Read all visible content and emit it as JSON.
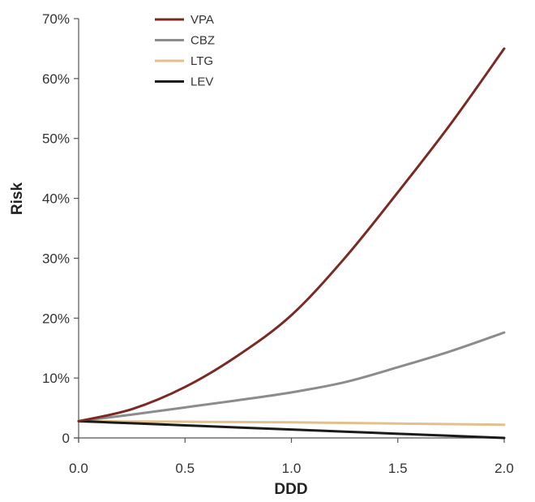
{
  "chart_data": {
    "type": "line",
    "xlabel": "DDD",
    "ylabel": "Risk",
    "xlim": [
      0,
      2
    ],
    "ylim": [
      0,
      0.7
    ],
    "x_ticks": [
      {
        "value": 0.0,
        "label": "0.0"
      },
      {
        "value": 0.5,
        "label": "0.5"
      },
      {
        "value": 1.0,
        "label": "1.0"
      },
      {
        "value": 1.5,
        "label": "1.5"
      },
      {
        "value": 2.0,
        "label": "2.0"
      }
    ],
    "y_ticks": [
      {
        "value": 0.0,
        "label": "0"
      },
      {
        "value": 0.1,
        "label": "10%"
      },
      {
        "value": 0.2,
        "label": "20%"
      },
      {
        "value": 0.3,
        "label": "30%"
      },
      {
        "value": 0.4,
        "label": "40%"
      },
      {
        "value": 0.5,
        "label": "50%"
      },
      {
        "value": 0.6,
        "label": "60%"
      },
      {
        "value": 0.7,
        "label": "70%"
      }
    ],
    "grid": false,
    "legend_position": "top-left",
    "x": [
      0.0,
      0.25,
      0.5,
      0.75,
      1.0,
      1.25,
      1.5,
      1.75,
      2.0
    ],
    "series": [
      {
        "name": "VPA",
        "color": "#7a2a22",
        "values": [
          0.028,
          0.048,
          0.085,
          0.138,
          0.205,
          0.3,
          0.41,
          0.525,
          0.65
        ]
      },
      {
        "name": "CBZ",
        "color": "#8a8c8d",
        "values": [
          0.028,
          0.039,
          0.051,
          0.063,
          0.076,
          0.093,
          0.118,
          0.145,
          0.176
        ]
      },
      {
        "name": "LTG",
        "color": "#e2c08c",
        "values": [
          0.028,
          0.0275,
          0.027,
          0.0265,
          0.026,
          0.025,
          0.024,
          0.023,
          0.022
        ]
      },
      {
        "name": "LEV",
        "color": "#1a1a1a",
        "values": [
          0.028,
          0.0245,
          0.021,
          0.0175,
          0.014,
          0.0105,
          0.007,
          0.0035,
          0.0
        ]
      }
    ]
  }
}
